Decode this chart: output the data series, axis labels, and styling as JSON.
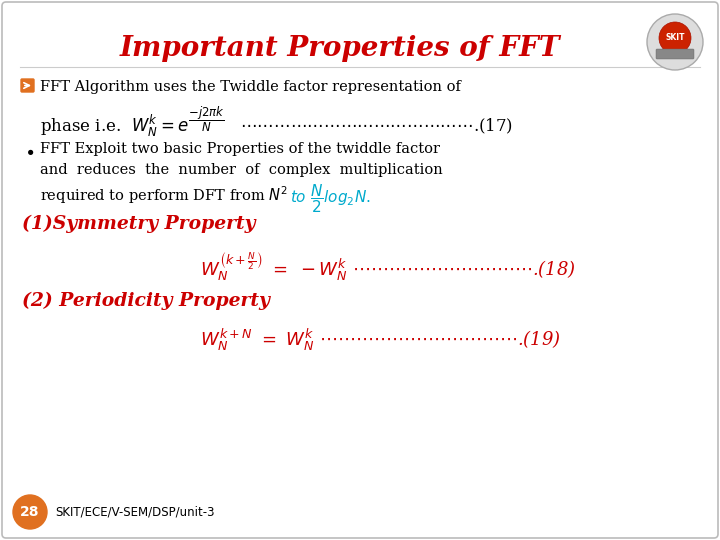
{
  "title": "Important Properties of FFT",
  "title_color": "#cc0000",
  "title_fontsize": 20,
  "bg_color": "#ffffff",
  "red_color": "#cc0000",
  "black_color": "#000000",
  "blue_color": "#00aacc",
  "orange_badge_color": "#e07020",
  "badge_number": "28",
  "badge_text": "SKIT/ECE/V-SEM/DSP/unit-3",
  "footer_fontsize": 8.5,
  "body_fontsize": 10.5,
  "math_fontsize": 12,
  "heading_fontsize": 13.5
}
